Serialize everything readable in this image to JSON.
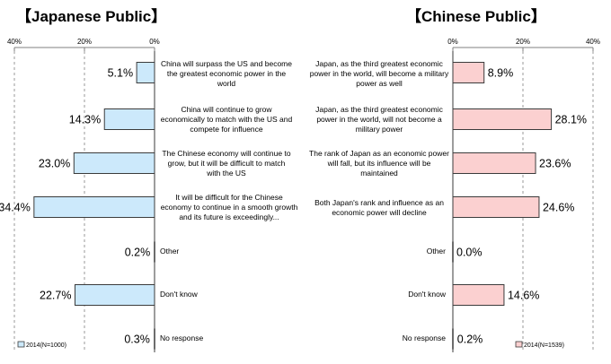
{
  "chart_data": [
    {
      "type": "bar",
      "title": "【Japanese Public】",
      "orientation": "horizontal",
      "direction": "right-to-left",
      "xlim": [
        0,
        40
      ],
      "ticks": [
        "40%",
        "20%",
        "0%"
      ],
      "categories": [
        "China will surpass the US and become the greatest  economic power in the world",
        "China will continue to grow economically to match with the US and compete for influence",
        "The Chinese economy will continue to grow, but it will be difficult to match with the US",
        "It will be difficult for the Chinese economy to continue in a smooth growth and its future is exceedingly...",
        "Other",
        "Don't know",
        "No response"
      ],
      "series": [
        {
          "name": "2014(N=1000)",
          "values": [
            5.1,
            14.3,
            23.0,
            34.4,
            0.2,
            22.7,
            0.3
          ],
          "labels": [
            "5.1%",
            "14.3%",
            "23.0%",
            "34.4%",
            "0.2%",
            "22.7%",
            "0.3%"
          ]
        }
      ],
      "grid": true,
      "legend": "bottom-left",
      "colors": {
        "fill": "#cce9fb",
        "stroke": "#3b3b3b"
      }
    },
    {
      "type": "bar",
      "title": "【Chinese Public】",
      "orientation": "horizontal",
      "direction": "left-to-right",
      "xlim": [
        0,
        40
      ],
      "ticks": [
        "0%",
        "20%",
        "40%"
      ],
      "categories": [
        "Japan, as the third greatest economic power in the world, will become a military power as well",
        "Japan, as the third greatest economic power in the world, will not become a military power",
        "The rank of Japan as an economic power will fall, but its influence will be maintained",
        "Both Japan's rank and influence as an economic power will decline",
        "Other",
        "Don't know",
        "No response"
      ],
      "series": [
        {
          "name": "2014(N=1539)",
          "values": [
            8.9,
            28.1,
            23.6,
            24.6,
            0.0,
            14.6,
            0.2
          ],
          "labels": [
            "8.9%",
            "28.1%",
            "23.6%",
            "24.6%",
            "0.0%",
            "14.6%",
            "0.2%"
          ]
        }
      ],
      "grid": true,
      "legend": "bottom-right",
      "colors": {
        "fill": "#fbd0d0",
        "stroke": "#3b3b3b"
      }
    }
  ]
}
